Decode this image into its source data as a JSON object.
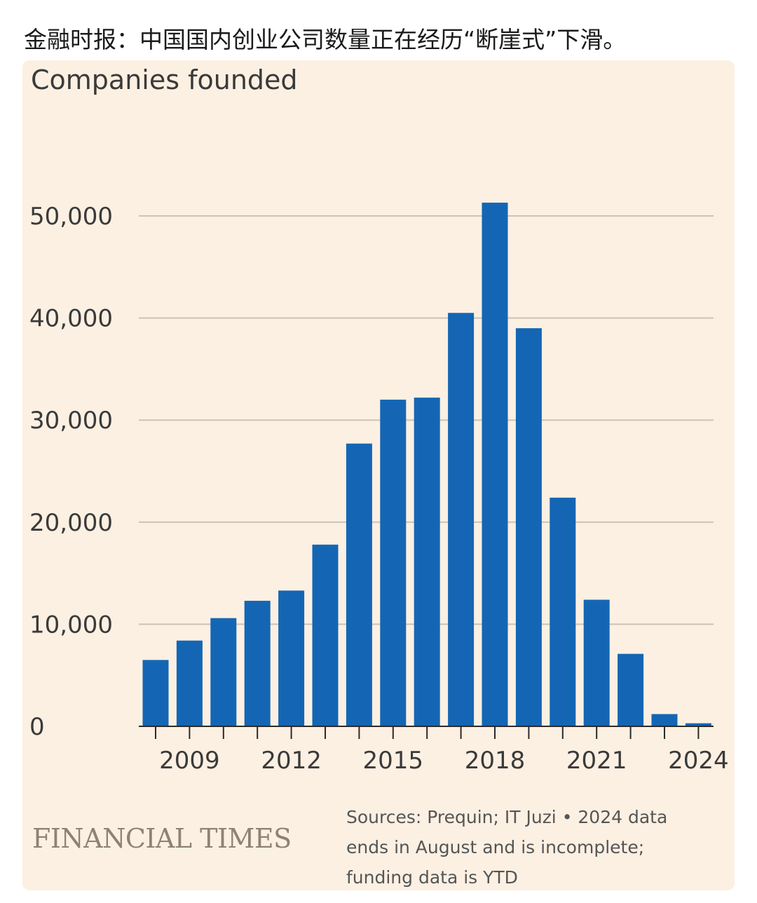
{
  "headline": "金融时报：中国国内创业公司数量正在经历“断崖式”下滑。",
  "source_note": {
    "lines": [
      "Sources: Prequin; IT Juzi • 2024 data",
      "ends in August and is incomplete;",
      "funding data is YTD"
    ]
  },
  "logo_text": "FINANCIAL TIMES",
  "colors": {
    "bar": "#1466b4",
    "grid": "#cbc2b7",
    "axis": "#2b2b2b",
    "card_bg": "#fcf0e3"
  },
  "chart_data": {
    "type": "bar",
    "title": "Companies founded",
    "xlabel": "",
    "ylabel": "",
    "categories": [
      "2008",
      "2009",
      "2010",
      "2011",
      "2012",
      "2013",
      "2014",
      "2015",
      "2016",
      "2017",
      "2018",
      "2019",
      "2020",
      "2021",
      "2022",
      "2023",
      "2024"
    ],
    "values": [
      6500,
      8400,
      10600,
      12300,
      13300,
      17800,
      27700,
      32000,
      32200,
      40500,
      51300,
      39000,
      22400,
      12400,
      7100,
      1200,
      300
    ],
    "yticks": [
      0,
      10000,
      20000,
      30000,
      40000,
      50000
    ],
    "ytick_labels": [
      "0",
      "10,000",
      "20,000",
      "30,000",
      "40,000",
      "50,000"
    ],
    "xtick_labels": [
      "2009",
      "2012",
      "2015",
      "2018",
      "2021",
      "2024"
    ],
    "xtick_label_years": [
      "2009",
      "2012",
      "2015",
      "2018",
      "2021",
      "2024"
    ],
    "ylim": [
      0,
      55000
    ],
    "grid": true,
    "legend": "none"
  }
}
